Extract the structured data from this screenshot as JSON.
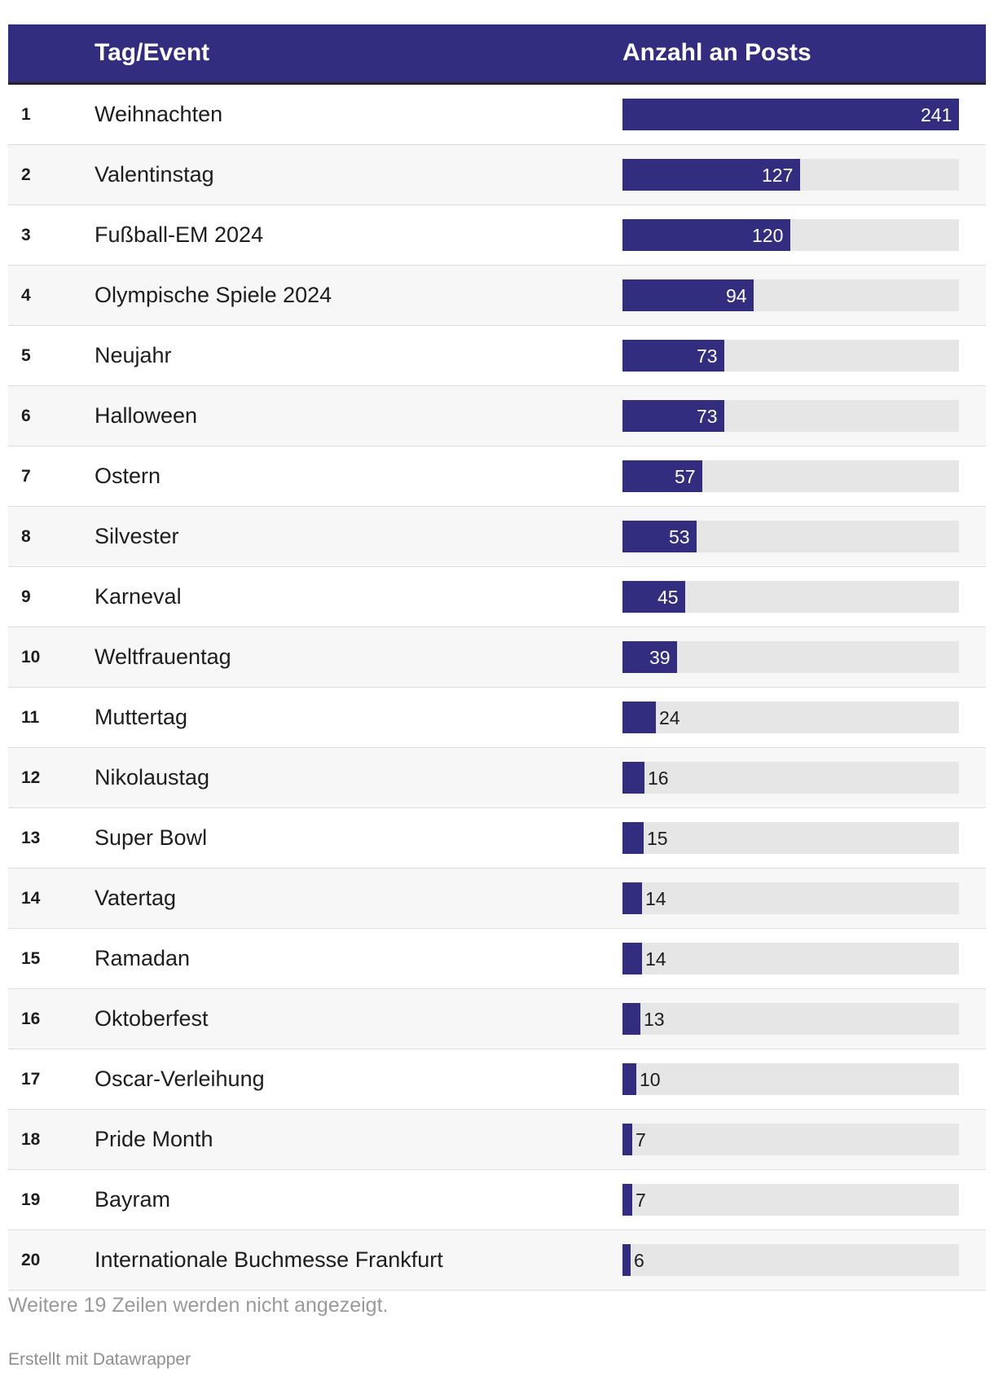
{
  "header": {
    "col_event": "Tag/Event",
    "col_posts": "Anzahl an Posts"
  },
  "colors": {
    "bar": "#332d80",
    "track": "#e6e6e6",
    "header_bg": "#332d80"
  },
  "chart_data": {
    "type": "bar",
    "orientation": "horizontal",
    "title": "",
    "xlabel": "Anzahl an Posts",
    "ylabel": "Tag/Event",
    "xlim": [
      0,
      241
    ],
    "ranks": [
      "1",
      "2",
      "3",
      "4",
      "5",
      "6",
      "7",
      "8",
      "9",
      "10",
      "11",
      "12",
      "13",
      "14",
      "15",
      "16",
      "17",
      "18",
      "19",
      "20"
    ],
    "categories": [
      "Weihnachten",
      "Valentinstag",
      "Fußball-EM 2024",
      "Olympische Spiele 2024",
      "Neujahr",
      "Halloween",
      "Ostern",
      "Silvester",
      "Karneval",
      "Weltfrauentag",
      "Muttertag",
      "Nikolaustag",
      "Super Bowl",
      "Vatertag",
      "Ramadan",
      "Oktoberfest",
      "Oscar-Verleihung",
      "Pride Month",
      "Bayram",
      "Internationale Buchmesse Frankfurt"
    ],
    "values": [
      241,
      127,
      120,
      94,
      73,
      73,
      57,
      53,
      45,
      39,
      24,
      16,
      15,
      14,
      14,
      13,
      10,
      7,
      7,
      6
    ]
  },
  "footer": {
    "note": "Weitere 19 Zeilen werden nicht angezeigt.",
    "credit": "Erstellt mit Datawrapper"
  }
}
